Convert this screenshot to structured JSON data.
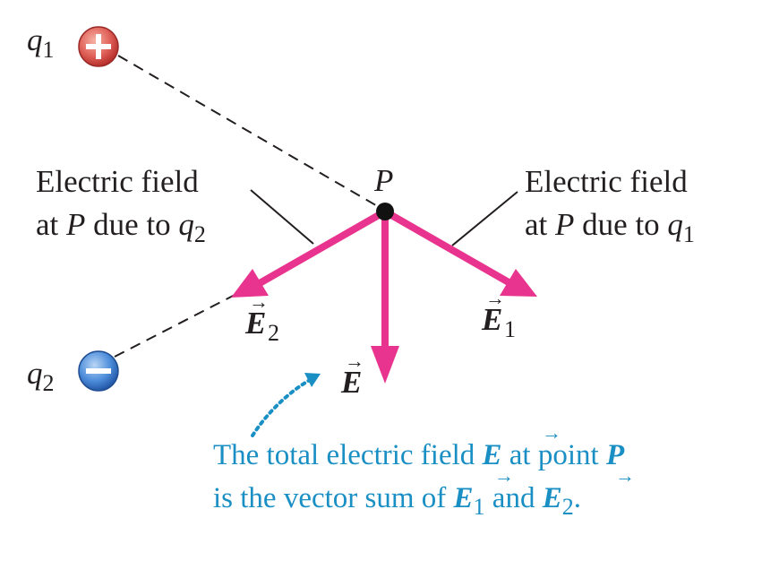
{
  "charges": {
    "q1": {
      "symbol": "q",
      "subscript": "1",
      "sign_glyph": "+",
      "color": "#d9534f"
    },
    "q2": {
      "symbol": "q",
      "subscript": "2",
      "sign_glyph": "−",
      "color": "#3a7fd1"
    }
  },
  "point": {
    "label": "P"
  },
  "fields": {
    "E": {
      "symbol": "E",
      "arrow": "⃗"
    },
    "E1": {
      "symbol": "E",
      "subscript": "1"
    },
    "E2": {
      "symbol": "E",
      "subscript": "2"
    },
    "vec_arrow": "→",
    "color": "#e8348e"
  },
  "labels": {
    "left": {
      "line1": "Electric field",
      "line2_pre": "at",
      "line2_P": "P",
      "line2_mid": "due to",
      "line2_q": "q",
      "line2_sub": "2"
    },
    "right": {
      "line1": "Electric field",
      "line2_pre": "at",
      "line2_P": "P",
      "line2_mid": "due to",
      "line2_q": "q",
      "line2_sub": "1"
    }
  },
  "caption": {
    "color": "#1a8fc4",
    "line1_pre": "The total electric field",
    "line1_E": "E",
    "line1_mid": "at point",
    "line1_P": "P",
    "line2_pre": "is the vector sum of",
    "line2_E1": "E",
    "line2_sub1": "1",
    "line2_and": "and",
    "line2_E2": "E",
    "line2_sub2": "2",
    "line2_end": "."
  }
}
